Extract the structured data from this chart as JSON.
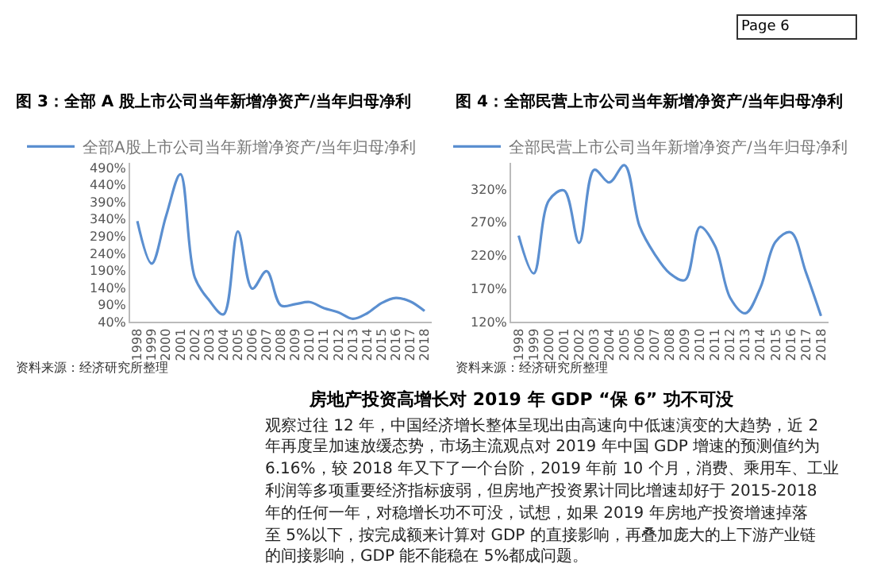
{
  "chart_data": [
    {
      "type": "line",
      "title": "图 3：全部 A 股上市公司当年新增净资产/当年归母净利",
      "categories": [
        "1998",
        "1999",
        "2000",
        "2001",
        "2002",
        "2003",
        "2004",
        "2005",
        "2006",
        "2007",
        "2008",
        "2009",
        "2010",
        "2011",
        "2012",
        "2013",
        "2014",
        "2015",
        "2016",
        "2017",
        "2018"
      ],
      "series": [
        {
          "name": "全部A股上市公司当年新增净资产/当年归母净利",
          "color": "#5b8fd0",
          "values": [
            334,
            210,
            349,
            471,
            170,
            103,
            62,
            304,
            137,
            188,
            88,
            92,
            98,
            80,
            68,
            49,
            65,
            95,
            110,
            100,
            72
          ]
        }
      ],
      "ylim": [
        40,
        505
      ],
      "yticks": [
        {
          "value": 40,
          "label": "40%"
        },
        {
          "value": 90,
          "label": "90%"
        },
        {
          "value": 140,
          "label": "140%"
        },
        {
          "value": 190,
          "label": "190%"
        },
        {
          "value": 240,
          "label": "240%"
        },
        {
          "value": 290,
          "label": "290%"
        },
        {
          "value": 340,
          "label": "340%"
        },
        {
          "value": 390,
          "label": "390%"
        },
        {
          "value": 440,
          "label": "440%"
        },
        {
          "value": 490,
          "label": "490%"
        }
      ],
      "legend": "top",
      "grid": false,
      "marker": "none",
      "line_style": "solid",
      "annotations": [
        "资料来源：经济研究所整理"
      ]
    },
    {
      "type": "line",
      "title": "图 4：全部民营上市公司当年新增净资产/当年归母净利",
      "categories": [
        "1998",
        "1999",
        "2000",
        "2001",
        "2002",
        "2003",
        "2004",
        "2005",
        "2006",
        "2007",
        "2008",
        "2009",
        "2010",
        "2011",
        "2012",
        "2013",
        "2014",
        "2015",
        "2016",
        "2017",
        "2018"
      ],
      "series": [
        {
          "name": "全部民营上市公司当年新增净资产/当年归母净利",
          "color": "#5b8fd0",
          "values": [
            250,
            193,
            303,
            318,
            239,
            349,
            330,
            356,
            264,
            222,
            193,
            183,
            263,
            234,
            156,
            133,
            172,
            241,
            255,
            195,
            129
          ]
        }
      ],
      "ylim": [
        120,
        360
      ],
      "yticks": [
        {
          "value": 120,
          "label": "120%"
        },
        {
          "value": 170,
          "label": "170%"
        },
        {
          "value": 220,
          "label": "220%"
        },
        {
          "value": 270,
          "label": "270%"
        },
        {
          "value": 320,
          "label": "320%"
        }
      ],
      "legend": "top",
      "grid": false,
      "marker": "none",
      "line_style": "solid",
      "annotations": [
        "资料来源：经济研究所整理"
      ]
    },
    {
      "type": "other",
      "title": "房地产投资高增长对 2019 年 GDP “保 6” 功不可没",
      "annotations": [
        "Page 6",
        "观察过往 12 年，中国经济增长整体呈现出由高速向中低速演变的大趋势，近 2",
        "年再度呈加速放缓态势，市场主流观点对 2019 年中国 GDP 增速的预测值约为",
        "6.16%，较 2018 年又下了一个台阶，2019 年前 10 个月，消费、乘用车、工业",
        "利润等多项重要经济指标疲弱，但房地产投资累计同比增速却好于 2015-2018",
        "年的任何一年，对稳增长功不可没，试想，如果 2019 年房地产投资增速掉落",
        "至 5%以下，按完成额来计算对 GDP 的直接影响，再叠加庞大的上下游产业链",
        "的间接影响，GDP 能不能稳在 5%都成问题。"
      ]
    }
  ]
}
